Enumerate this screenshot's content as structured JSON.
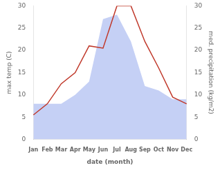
{
  "chart_data": {
    "type": "line",
    "xlabel": "date (month)",
    "ylabel": "max temp (C)",
    "y2label": "med. precipitation (kg/m2)",
    "categories": [
      "Jan",
      "Feb",
      "Mar",
      "Apr",
      "May",
      "Jun",
      "Jul",
      "Aug",
      "Sep",
      "Oct",
      "Nov",
      "Dec"
    ],
    "series": [
      {
        "type": "area",
        "axis": "y2",
        "color": "#c5d0f5",
        "values": [
          8.0,
          8.0,
          8.0,
          10.0,
          13.0,
          27.0,
          28.0,
          22.0,
          12.0,
          11.0,
          9.0,
          9.0
        ]
      },
      {
        "type": "line",
        "color": "#c0392b",
        "values": [
          5.5,
          8.0,
          12.5,
          15.0,
          21.0,
          20.5,
          30.0,
          30.0,
          22.0,
          16.0,
          9.5,
          8.0
        ]
      }
    ],
    "ylim": [
      0,
      30
    ],
    "yticks": [
      0,
      5,
      10,
      15,
      20,
      25,
      30
    ],
    "y2lim": [
      0,
      30
    ],
    "y2ticks": [
      0,
      5,
      10,
      15,
      20,
      25,
      30
    ],
    "grid": false
  }
}
